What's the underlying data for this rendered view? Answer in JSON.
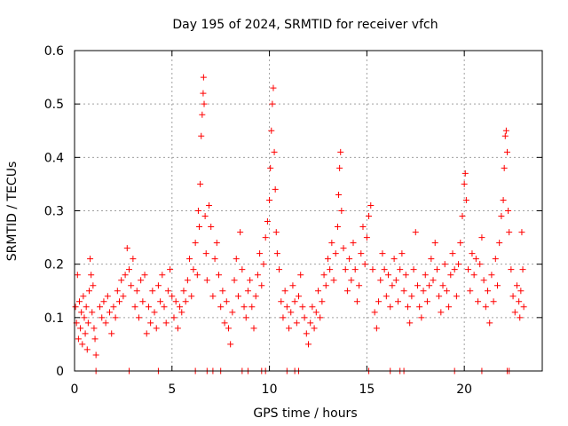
{
  "chart_data": {
    "type": "scatter",
    "title": "Day 195 of 2024, SRMTID for receiver vfch",
    "xlabel": "GPS time / hours",
    "ylabel": "SRMTID / TECUs",
    "xlim": [
      0,
      24
    ],
    "ylim": [
      0,
      0.6
    ],
    "x_ticks": [
      0,
      5,
      10,
      15,
      20
    ],
    "x_tick_labels": [
      "0",
      "5",
      "10",
      "15",
      "20"
    ],
    "y_ticks": [
      0,
      0.1,
      0.2,
      0.3,
      0.4,
      0.5,
      0.6
    ],
    "y_tick_labels": [
      "0",
      "0.1",
      "0.2",
      "0.3",
      "0.4",
      "0.5",
      "0.6"
    ],
    "grid": true,
    "marker": "+",
    "color": "#ff0000",
    "series": [
      {
        "name": "SRMTID",
        "points": [
          [
            0.05,
            0.12
          ],
          [
            0.1,
            0.09
          ],
          [
            0.15,
            0.18
          ],
          [
            0.2,
            0.06
          ],
          [
            0.25,
            0.13
          ],
          [
            0.3,
            0.08
          ],
          [
            0.35,
            0.11
          ],
          [
            0.4,
            0.05
          ],
          [
            0.45,
            0.14
          ],
          [
            0.5,
            0.1
          ],
          [
            0.55,
            0.07
          ],
          [
            0.6,
            0.12
          ],
          [
            0.65,
            0.04
          ],
          [
            0.7,
            0.09
          ],
          [
            0.75,
            0.15
          ],
          [
            0.8,
            0.21
          ],
          [
            0.85,
            0.18
          ],
          [
            0.9,
            0.11
          ],
          [
            0.95,
            0.16
          ],
          [
            1.0,
            0.08
          ],
          [
            1.05,
            0.06
          ],
          [
            1.1,
            0.03
          ],
          [
            1.3,
            0.12
          ],
          [
            1.4,
            0.1
          ],
          [
            1.5,
            0.13
          ],
          [
            1.6,
            0.09
          ],
          [
            1.7,
            0.14
          ],
          [
            1.8,
            0.11
          ],
          [
            1.9,
            0.07
          ],
          [
            2.0,
            0.12
          ],
          [
            2.1,
            0.1
          ],
          [
            2.2,
            0.15
          ],
          [
            2.3,
            0.13
          ],
          [
            2.4,
            0.17
          ],
          [
            2.5,
            0.14
          ],
          [
            2.6,
            0.18
          ],
          [
            2.7,
            0.23
          ],
          [
            2.8,
            0.19
          ],
          [
            2.9,
            0.16
          ],
          [
            3.0,
            0.21
          ],
          [
            3.1,
            0.12
          ],
          [
            3.2,
            0.15
          ],
          [
            3.3,
            0.1
          ],
          [
            3.4,
            0.17
          ],
          [
            3.5,
            0.13
          ],
          [
            3.6,
            0.18
          ],
          [
            3.7,
            0.07
          ],
          [
            3.8,
            0.12
          ],
          [
            3.9,
            0.09
          ],
          [
            4.0,
            0.15
          ],
          [
            4.1,
            0.11
          ],
          [
            4.2,
            0.08
          ],
          [
            4.3,
            0.16
          ],
          [
            4.4,
            0.13
          ],
          [
            4.5,
            0.18
          ],
          [
            4.6,
            0.12
          ],
          [
            4.7,
            0.09
          ],
          [
            4.8,
            0.15
          ],
          [
            4.9,
            0.19
          ],
          [
            5.0,
            0.14
          ],
          [
            5.1,
            0.1
          ],
          [
            5.2,
            0.13
          ],
          [
            5.3,
            0.08
          ],
          [
            5.4,
            0.12
          ],
          [
            5.5,
            0.11
          ],
          [
            5.6,
            0.15
          ],
          [
            5.7,
            0.13
          ],
          [
            5.8,
            0.17
          ],
          [
            5.9,
            0.21
          ],
          [
            6.0,
            0.14
          ],
          [
            6.1,
            0.19
          ],
          [
            6.2,
            0.24
          ],
          [
            6.3,
            0.18
          ],
          [
            6.35,
            0.3
          ],
          [
            6.4,
            0.27
          ],
          [
            6.45,
            0.35
          ],
          [
            6.5,
            0.44
          ],
          [
            6.55,
            0.48
          ],
          [
            6.6,
            0.52
          ],
          [
            6.62,
            0.55
          ],
          [
            6.65,
            0.5
          ],
          [
            6.7,
            0.29
          ],
          [
            6.75,
            0.22
          ],
          [
            6.8,
            0.17
          ],
          [
            6.9,
            0.31
          ],
          [
            7.0,
            0.27
          ],
          [
            7.1,
            0.14
          ],
          [
            7.2,
            0.21
          ],
          [
            7.3,
            0.24
          ],
          [
            7.4,
            0.18
          ],
          [
            7.5,
            0.12
          ],
          [
            7.6,
            0.15
          ],
          [
            7.7,
            0.09
          ],
          [
            7.8,
            0.13
          ],
          [
            7.9,
            0.08
          ],
          [
            8.0,
            0.05
          ],
          [
            8.1,
            0.11
          ],
          [
            8.2,
            0.17
          ],
          [
            8.3,
            0.21
          ],
          [
            8.4,
            0.14
          ],
          [
            8.5,
            0.26
          ],
          [
            8.6,
            0.19
          ],
          [
            8.7,
            0.12
          ],
          [
            8.8,
            0.1
          ],
          [
            8.9,
            0.15
          ],
          [
            9.0,
            0.17
          ],
          [
            9.1,
            0.12
          ],
          [
            9.2,
            0.08
          ],
          [
            9.3,
            0.14
          ],
          [
            9.4,
            0.18
          ],
          [
            9.5,
            0.22
          ],
          [
            9.6,
            0.16
          ],
          [
            9.7,
            0.2
          ],
          [
            9.8,
            0.25
          ],
          [
            9.9,
            0.28
          ],
          [
            10.0,
            0.32
          ],
          [
            10.05,
            0.38
          ],
          [
            10.1,
            0.45
          ],
          [
            10.15,
            0.5
          ],
          [
            10.2,
            0.53
          ],
          [
            10.25,
            0.41
          ],
          [
            10.3,
            0.34
          ],
          [
            10.35,
            0.26
          ],
          [
            10.4,
            0.22
          ],
          [
            10.5,
            0.19
          ],
          [
            10.6,
            0.13
          ],
          [
            10.7,
            0.1
          ],
          [
            10.8,
            0.15
          ],
          [
            10.9,
            0.12
          ],
          [
            11.0,
            0.08
          ],
          [
            11.1,
            0.11
          ],
          [
            11.2,
            0.16
          ],
          [
            11.3,
            0.13
          ],
          [
            11.4,
            0.09
          ],
          [
            11.5,
            0.14
          ],
          [
            11.6,
            0.18
          ],
          [
            11.7,
            0.12
          ],
          [
            11.8,
            0.1
          ],
          [
            11.9,
            0.07
          ],
          [
            12.0,
            0.05
          ],
          [
            12.1,
            0.09
          ],
          [
            12.2,
            0.12
          ],
          [
            12.3,
            0.08
          ],
          [
            12.4,
            0.11
          ],
          [
            12.5,
            0.15
          ],
          [
            12.6,
            0.1
          ],
          [
            12.7,
            0.13
          ],
          [
            12.8,
            0.18
          ],
          [
            12.9,
            0.16
          ],
          [
            13.0,
            0.21
          ],
          [
            13.1,
            0.19
          ],
          [
            13.2,
            0.24
          ],
          [
            13.3,
            0.17
          ],
          [
            13.4,
            0.22
          ],
          [
            13.5,
            0.27
          ],
          [
            13.55,
            0.33
          ],
          [
            13.6,
            0.38
          ],
          [
            13.65,
            0.41
          ],
          [
            13.7,
            0.3
          ],
          [
            13.8,
            0.23
          ],
          [
            13.9,
            0.19
          ],
          [
            14.0,
            0.15
          ],
          [
            14.1,
            0.21
          ],
          [
            14.2,
            0.17
          ],
          [
            14.3,
            0.24
          ],
          [
            14.4,
            0.19
          ],
          [
            14.5,
            0.13
          ],
          [
            14.6,
            0.16
          ],
          [
            14.7,
            0.22
          ],
          [
            14.8,
            0.27
          ],
          [
            14.9,
            0.2
          ],
          [
            15.0,
            0.25
          ],
          [
            15.1,
            0.29
          ],
          [
            15.2,
            0.31
          ],
          [
            15.3,
            0.19
          ],
          [
            15.4,
            0.11
          ],
          [
            15.5,
            0.08
          ],
          [
            15.6,
            0.13
          ],
          [
            15.7,
            0.17
          ],
          [
            15.8,
            0.22
          ],
          [
            15.9,
            0.19
          ],
          [
            16.0,
            0.14
          ],
          [
            16.1,
            0.18
          ],
          [
            16.2,
            0.12
          ],
          [
            16.3,
            0.16
          ],
          [
            16.4,
            0.21
          ],
          [
            16.5,
            0.17
          ],
          [
            16.6,
            0.13
          ],
          [
            16.7,
            0.19
          ],
          [
            16.8,
            0.22
          ],
          [
            16.9,
            0.15
          ],
          [
            17.0,
            0.18
          ],
          [
            17.1,
            0.12
          ],
          [
            17.2,
            0.09
          ],
          [
            17.3,
            0.14
          ],
          [
            17.4,
            0.19
          ],
          [
            17.5,
            0.26
          ],
          [
            17.6,
            0.16
          ],
          [
            17.7,
            0.12
          ],
          [
            17.8,
            0.1
          ],
          [
            17.9,
            0.15
          ],
          [
            18.0,
            0.18
          ],
          [
            18.1,
            0.13
          ],
          [
            18.2,
            0.16
          ],
          [
            18.3,
            0.21
          ],
          [
            18.4,
            0.17
          ],
          [
            18.5,
            0.24
          ],
          [
            18.6,
            0.19
          ],
          [
            18.7,
            0.14
          ],
          [
            18.8,
            0.11
          ],
          [
            18.9,
            0.16
          ],
          [
            19.0,
            0.2
          ],
          [
            19.1,
            0.15
          ],
          [
            19.2,
            0.12
          ],
          [
            19.3,
            0.18
          ],
          [
            19.4,
            0.22
          ],
          [
            19.5,
            0.19
          ],
          [
            19.6,
            0.14
          ],
          [
            19.7,
            0.2
          ],
          [
            19.8,
            0.24
          ],
          [
            19.9,
            0.29
          ],
          [
            20.0,
            0.35
          ],
          [
            20.05,
            0.37
          ],
          [
            20.1,
            0.32
          ],
          [
            20.2,
            0.19
          ],
          [
            20.3,
            0.15
          ],
          [
            20.4,
            0.22
          ],
          [
            20.5,
            0.18
          ],
          [
            20.6,
            0.21
          ],
          [
            20.7,
            0.13
          ],
          [
            20.8,
            0.2
          ],
          [
            20.9,
            0.25
          ],
          [
            21.0,
            0.17
          ],
          [
            21.1,
            0.12
          ],
          [
            21.2,
            0.15
          ],
          [
            21.3,
            0.09
          ],
          [
            21.4,
            0.18
          ],
          [
            21.5,
            0.13
          ],
          [
            21.6,
            0.21
          ],
          [
            21.7,
            0.16
          ],
          [
            21.8,
            0.24
          ],
          [
            21.9,
            0.29
          ],
          [
            22.0,
            0.32
          ],
          [
            22.05,
            0.38
          ],
          [
            22.1,
            0.44
          ],
          [
            22.15,
            0.45
          ],
          [
            22.2,
            0.41
          ],
          [
            22.25,
            0.3
          ],
          [
            22.3,
            0.26
          ],
          [
            22.4,
            0.19
          ],
          [
            22.5,
            0.14
          ],
          [
            22.6,
            0.11
          ],
          [
            22.7,
            0.16
          ],
          [
            22.8,
            0.13
          ],
          [
            22.85,
            0.1
          ],
          [
            22.9,
            0.15
          ],
          [
            22.95,
            0.26
          ],
          [
            23.0,
            0.19
          ],
          [
            23.05,
            0.12
          ]
        ]
      },
      {
        "name": "zero-level markers",
        "points": [
          [
            1.1,
            0
          ],
          [
            2.8,
            0
          ],
          [
            4.3,
            0
          ],
          [
            6.2,
            0
          ],
          [
            6.8,
            0
          ],
          [
            7.1,
            0
          ],
          [
            7.5,
            0
          ],
          [
            8.6,
            0
          ],
          [
            8.9,
            0
          ],
          [
            9.6,
            0
          ],
          [
            9.8,
            0
          ],
          [
            10.9,
            0
          ],
          [
            11.3,
            0
          ],
          [
            11.5,
            0
          ],
          [
            15.1,
            0
          ],
          [
            16.2,
            0
          ],
          [
            16.7,
            0
          ],
          [
            16.9,
            0
          ],
          [
            19.5,
            0
          ],
          [
            20.9,
            0
          ],
          [
            22.2,
            0
          ],
          [
            22.3,
            0
          ]
        ]
      }
    ]
  }
}
